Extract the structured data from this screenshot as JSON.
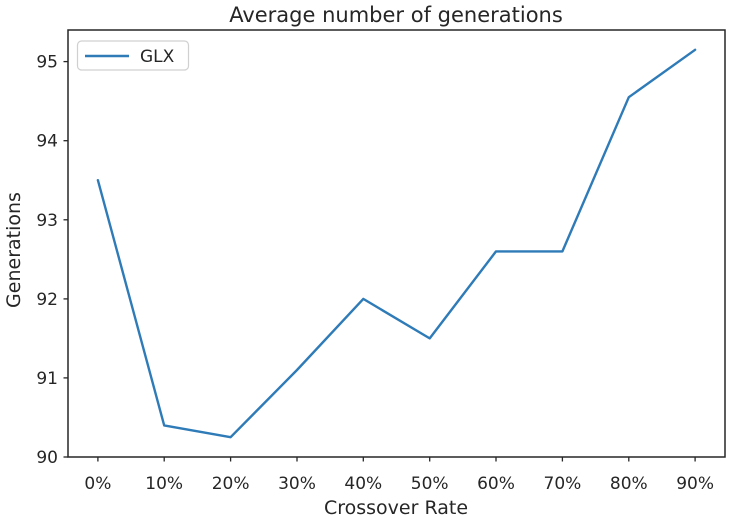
{
  "chart_data": {
    "type": "line",
    "title": "Average number of generations",
    "xlabel": "Crossover Rate",
    "ylabel": "Generations",
    "categories": [
      "0%",
      "10%",
      "20%",
      "30%",
      "40%",
      "50%",
      "60%",
      "70%",
      "80%",
      "90%"
    ],
    "series": [
      {
        "name": "GLX",
        "color": "#2e7bb8",
        "values": [
          93.5,
          90.4,
          90.25,
          91.1,
          92.0,
          91.5,
          92.6,
          92.6,
          94.55,
          95.15
        ]
      }
    ],
    "yticks": [
      90,
      91,
      92,
      93,
      94,
      95
    ],
    "ylim": [
      90.0,
      95.4
    ],
    "grid": false,
    "legend_position": "upper left",
    "axis_color": "#262626",
    "legend_border_color": "#d0d0d0",
    "background_color": "#ffffff"
  }
}
